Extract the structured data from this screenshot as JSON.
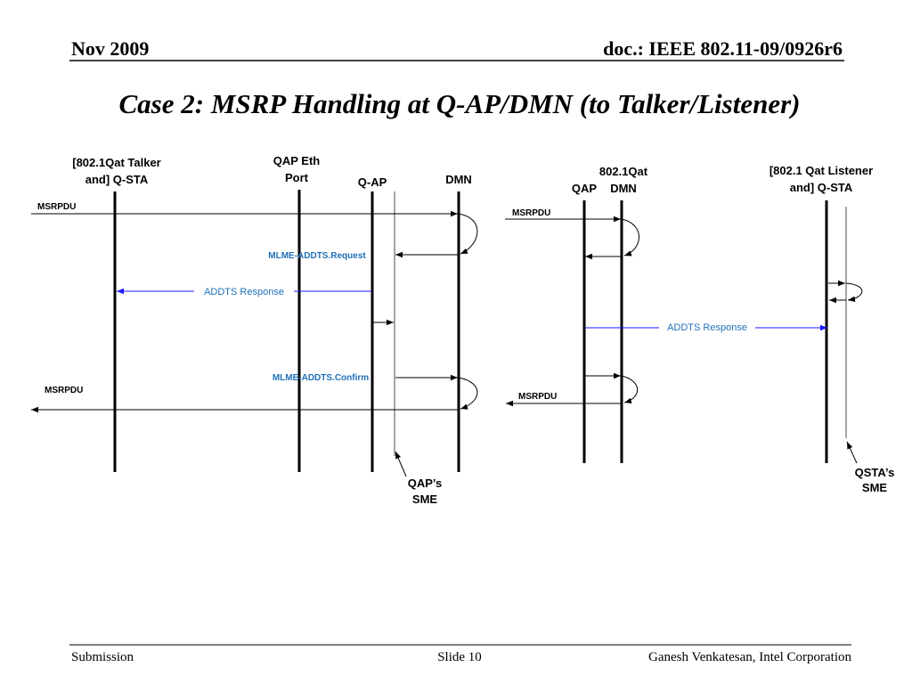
{
  "header": {
    "date": "Nov 2009",
    "doc": "doc.: IEEE 802.11-09/0926r6"
  },
  "title": "Case 2: MSRP Handling at Q-AP/DMN (to Talker/Listener)",
  "left_diagram": {
    "lifelines": {
      "talker": [
        "[802.1Qat Talker",
        "and] Q-STA"
      ],
      "eth_port": [
        "QAP Eth",
        "Port"
      ],
      "qap": "Q-AP",
      "dmn": "DMN"
    },
    "messages": {
      "msrpdu_in": "MSRPDU",
      "request": "MLME-ADDTS.Request",
      "response": "ADDTS Response",
      "confirm": "MLME-ADDTS.Confirm",
      "msrpdu_out": "MSRPDU"
    },
    "note": [
      "QAP’s",
      "SME"
    ]
  },
  "right_diagram": {
    "group": "802.1Qat",
    "lifelines": {
      "qap": "QAP",
      "dmn": "DMN",
      "listener": [
        "[802.1 Qat Listener",
        "and] Q-STA"
      ]
    },
    "messages": {
      "msrpdu_in": "MSRPDU",
      "response": "ADDTS Response",
      "msrpdu_out": "MSRPDU"
    },
    "note": [
      "QSTA’s",
      "SME"
    ]
  },
  "footer": {
    "left": "Submission",
    "center": "Slide 10",
    "right": "Ganesh Venkatesan, Intel Corporation"
  }
}
